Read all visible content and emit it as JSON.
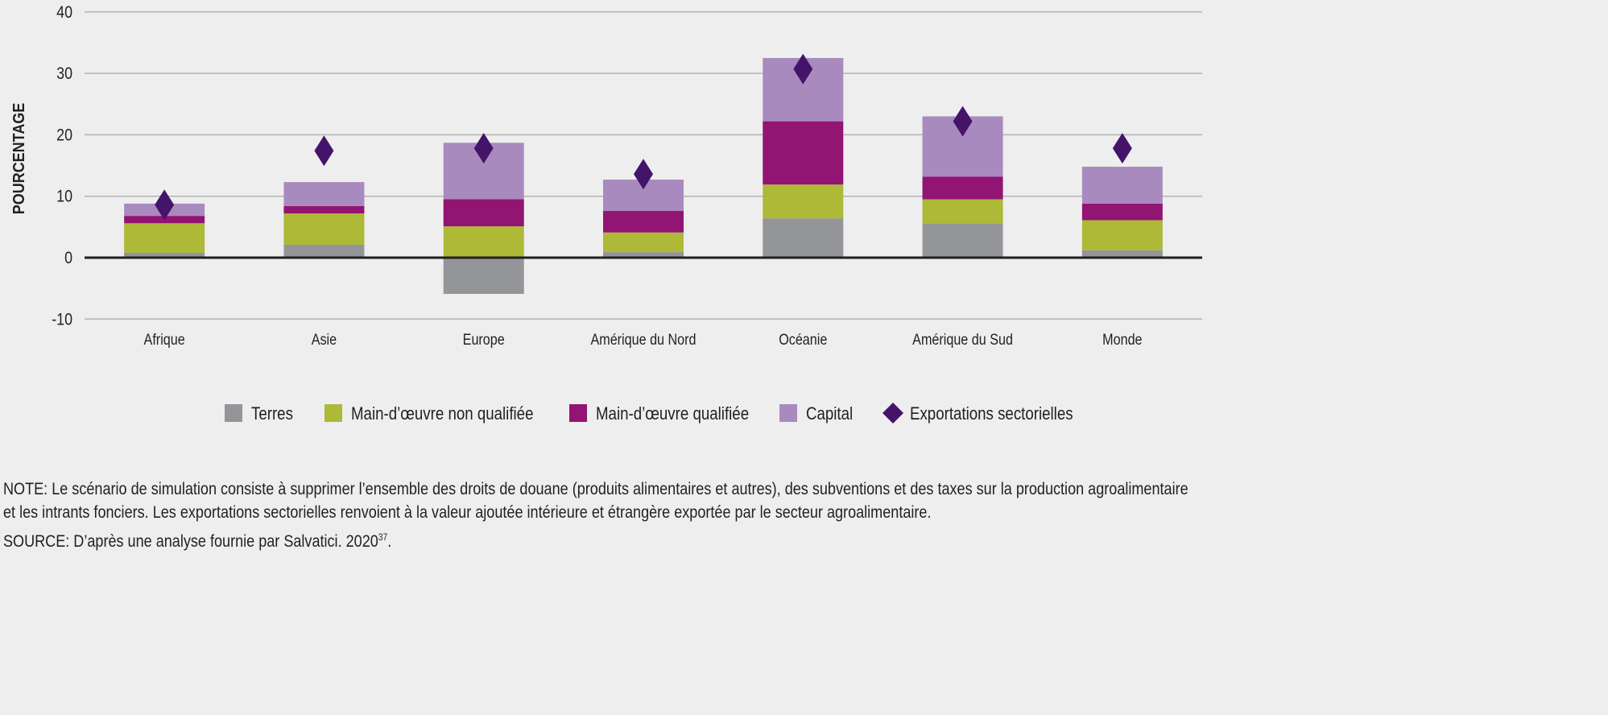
{
  "chart_data": {
    "type": "bar",
    "stacked": true,
    "ylabel": "POURCENTAGE",
    "ylim": [
      -10,
      40
    ],
    "yticks": [
      -10,
      0,
      10,
      20,
      30,
      40
    ],
    "grid": true,
    "legend_position": "bottom",
    "categories": [
      "Afrique",
      "Asie",
      "Europe",
      "Amérique du Nord",
      "Océanie",
      "Amérique du Sud",
      "Monde"
    ],
    "series": [
      {
        "name": "Terres",
        "color": "#939598",
        "values": [
          0.8,
          2.1,
          -5.9,
          0.9,
          6.4,
          5.6,
          1.2
        ]
      },
      {
        "name": "Main-d’œuvre non qualifiée",
        "color": "#adb937",
        "values": [
          4.8,
          5.1,
          5.1,
          3.2,
          5.5,
          3.9,
          4.9
        ]
      },
      {
        "name": "Main-d’œuvre qualifiée",
        "color": "#921473",
        "values": [
          1.2,
          1.2,
          4.4,
          3.5,
          10.3,
          3.7,
          2.7
        ]
      },
      {
        "name": "Capital",
        "color": "#a98abf",
        "values": [
          2.0,
          3.9,
          9.2,
          5.1,
          10.3,
          9.8,
          6.0
        ]
      }
    ],
    "markers": {
      "name": "Exportations sectorielles",
      "color": "#44146b",
      "values": [
        8.6,
        17.4,
        17.8,
        13.6,
        30.7,
        22.2,
        17.8
      ]
    }
  },
  "notes": {
    "line1": "NOTE: Le scénario de simulation consiste à supprimer l’ensemble des droits de douane (produits alimentaires et autres), des subventions et des taxes sur la production agroalimentaire",
    "line2": "et les intrants fonciers. Les exportations sectorielles renvoient à la valeur ajoutée intérieure et étrangère exportée par le secteur agroalimentaire.",
    "source": "SOURCE: D’après une analyse fournie par Salvatici. 2020",
    "source_ref": "37",
    "source_end": "."
  }
}
